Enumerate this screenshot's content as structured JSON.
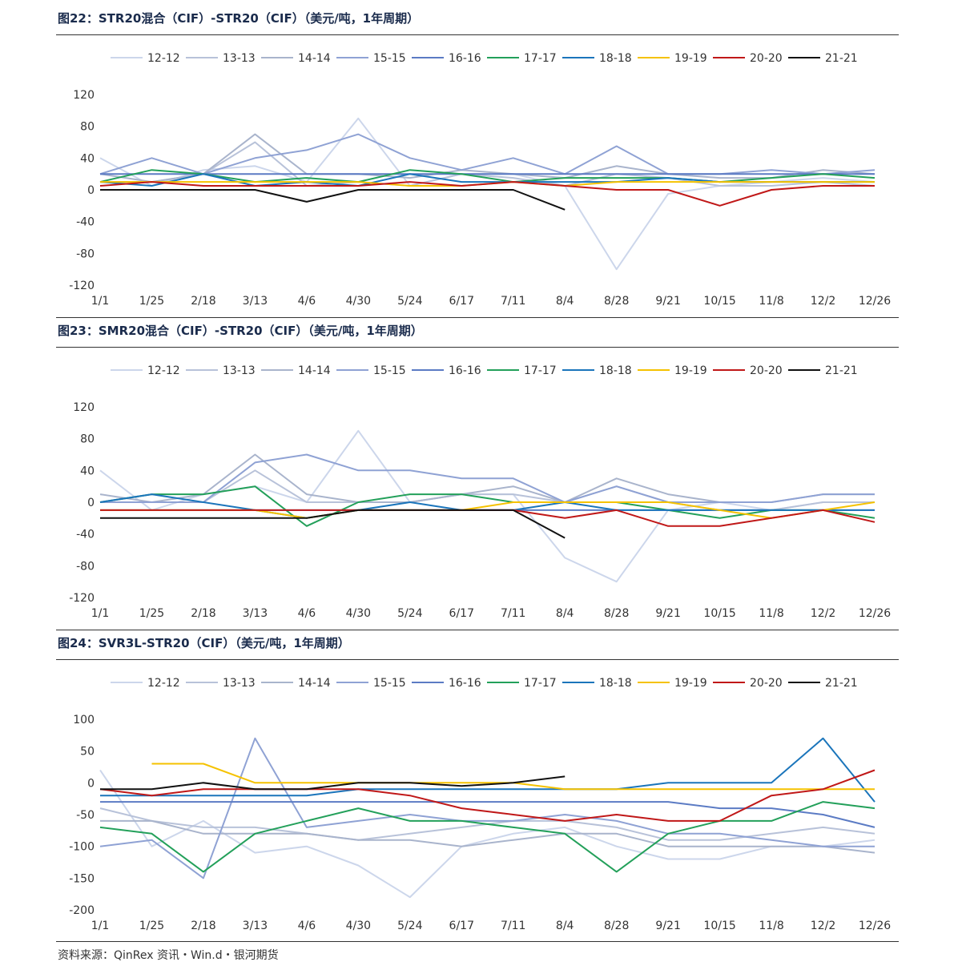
{
  "chart_data": [
    {
      "type": "line",
      "title": "图22：STR20混合（CIF）-STR20（CIF）（美元/吨，1年周期）",
      "categories": [
        "1/1",
        "1/25",
        "2/18",
        "3/13",
        "4/6",
        "4/30",
        "5/24",
        "6/17",
        "7/11",
        "8/4",
        "8/28",
        "9/21",
        "10/15",
        "11/8",
        "12/2",
        "12/26"
      ],
      "ylim": [
        -120,
        120
      ],
      "yticks": [
        120,
        80,
        40,
        0,
        -40,
        -80,
        -120
      ],
      "legend_position": "top",
      "series": [
        {
          "name": "12-12",
          "color": "#ccd6eb",
          "values": [
            40,
            5,
            25,
            30,
            10,
            90,
            5,
            20,
            20,
            5,
            -100,
            -5,
            5,
            10,
            15,
            10
          ]
        },
        {
          "name": "13-13",
          "color": "#b8c2d9",
          "values": [
            10,
            10,
            20,
            60,
            5,
            10,
            5,
            20,
            15,
            5,
            20,
            15,
            5,
            5,
            10,
            5
          ]
        },
        {
          "name": "14-14",
          "color": "#a9b4cc",
          "values": [
            20,
            10,
            20,
            70,
            20,
            20,
            15,
            25,
            20,
            15,
            30,
            20,
            15,
            15,
            25,
            20
          ]
        },
        {
          "name": "15-15",
          "color": "#8fa2d4",
          "values": [
            20,
            40,
            20,
            40,
            50,
            70,
            40,
            25,
            40,
            20,
            55,
            20,
            20,
            25,
            20,
            25
          ]
        },
        {
          "name": "16-16",
          "color": "#5b7bc4",
          "values": [
            20,
            20,
            20,
            20,
            20,
            20,
            20,
            20,
            20,
            20,
            20,
            20,
            20,
            20,
            20,
            20
          ]
        },
        {
          "name": "17-17",
          "color": "#23a05a",
          "values": [
            10,
            25,
            20,
            10,
            15,
            10,
            25,
            20,
            10,
            15,
            15,
            15,
            10,
            15,
            20,
            15
          ]
        },
        {
          "name": "18-18",
          "color": "#1b75bb",
          "values": [
            10,
            5,
            20,
            5,
            10,
            5,
            20,
            10,
            10,
            10,
            10,
            15,
            10,
            10,
            10,
            10
          ]
        },
        {
          "name": "19-19",
          "color": "#f5c200",
          "values": [
            10,
            10,
            10,
            10,
            10,
            10,
            5,
            5,
            10,
            5,
            10,
            10,
            10,
            10,
            10,
            10
          ]
        },
        {
          "name": "20-20",
          "color": "#c01818",
          "values": [
            5,
            10,
            5,
            5,
            5,
            5,
            10,
            5,
            10,
            5,
            0,
            0,
            -20,
            0,
            5,
            5
          ]
        },
        {
          "name": "21-21",
          "color": "#111111",
          "values": [
            0,
            0,
            0,
            0,
            -15,
            0,
            0,
            0,
            0,
            -25,
            null,
            null,
            null,
            null,
            null,
            null
          ]
        }
      ]
    },
    {
      "type": "line",
      "title": "图23：SMR20混合（CIF）-STR20（CIF）（美元/吨，1年周期）",
      "categories": [
        "1/1",
        "1/25",
        "2/18",
        "3/13",
        "4/6",
        "4/30",
        "5/24",
        "6/17",
        "7/11",
        "8/4",
        "8/28",
        "9/21",
        "10/15",
        "11/8",
        "12/2",
        "12/26"
      ],
      "ylim": [
        -120,
        120
      ],
      "yticks": [
        120,
        80,
        40,
        0,
        -40,
        -80,
        -120
      ],
      "legend_position": "top",
      "series": [
        {
          "name": "12-12",
          "color": "#ccd6eb",
          "values": [
            40,
            -10,
            10,
            20,
            0,
            90,
            0,
            10,
            10,
            -70,
            -100,
            -10,
            0,
            -10,
            0,
            0
          ]
        },
        {
          "name": "13-13",
          "color": "#b8c2d9",
          "values": [
            0,
            0,
            0,
            40,
            0,
            0,
            0,
            10,
            10,
            0,
            20,
            0,
            -10,
            -10,
            0,
            0
          ]
        },
        {
          "name": "14-14",
          "color": "#a9b4cc",
          "values": [
            10,
            0,
            10,
            60,
            10,
            0,
            0,
            10,
            20,
            0,
            30,
            10,
            0,
            0,
            10,
            10
          ]
        },
        {
          "name": "15-15",
          "color": "#8fa2d4",
          "values": [
            0,
            0,
            0,
            50,
            60,
            40,
            40,
            30,
            30,
            0,
            20,
            0,
            0,
            0,
            10,
            10
          ]
        },
        {
          "name": "16-16",
          "color": "#5b7bc4",
          "values": [
            -10,
            -10,
            -10,
            -10,
            -10,
            -10,
            -10,
            -10,
            -10,
            -10,
            -10,
            -10,
            -10,
            -10,
            -10,
            -10
          ]
        },
        {
          "name": "17-17",
          "color": "#23a05a",
          "values": [
            0,
            10,
            10,
            20,
            -30,
            0,
            10,
            10,
            0,
            0,
            0,
            -10,
            -20,
            -10,
            -10,
            -20
          ]
        },
        {
          "name": "18-18",
          "color": "#1b75bb",
          "values": [
            0,
            10,
            0,
            -10,
            -20,
            -10,
            0,
            -10,
            -10,
            0,
            -10,
            -10,
            -10,
            -10,
            -10,
            -10
          ]
        },
        {
          "name": "19-19",
          "color": "#f5c200",
          "values": [
            -10,
            -10,
            -10,
            -10,
            -20,
            -10,
            -10,
            -10,
            0,
            0,
            0,
            0,
            -10,
            -20,
            -10,
            0
          ]
        },
        {
          "name": "20-20",
          "color": "#c01818",
          "values": [
            -10,
            -10,
            -10,
            -10,
            -10,
            -10,
            -10,
            -10,
            -10,
            -20,
            -10,
            -30,
            -30,
            -20,
            -10,
            -25
          ]
        },
        {
          "name": "21-21",
          "color": "#111111",
          "values": [
            -20,
            -20,
            -20,
            -20,
            -20,
            -10,
            -10,
            -10,
            -10,
            -45,
            null,
            null,
            null,
            null,
            null,
            null
          ]
        }
      ]
    },
    {
      "type": "line",
      "title": "图24：SVR3L-STR20（CIF）（美元/吨，1年周期）",
      "categories": [
        "1/1",
        "1/25",
        "2/18",
        "3/13",
        "4/6",
        "4/30",
        "5/24",
        "6/17",
        "7/11",
        "8/4",
        "8/28",
        "9/21",
        "10/15",
        "11/8",
        "12/2",
        "12/26"
      ],
      "ylim": [
        -200,
        100
      ],
      "yticks": [
        100,
        50,
        0,
        -50,
        -100,
        -150,
        -200
      ],
      "legend_position": "top",
      "series": [
        {
          "name": "12-12",
          "color": "#ccd6eb",
          "values": [
            20,
            -100,
            -60,
            -110,
            -100,
            -130,
            -180,
            -100,
            -80,
            -70,
            -100,
            -120,
            -120,
            -100,
            -100,
            -90
          ]
        },
        {
          "name": "13-13",
          "color": "#b8c2d9",
          "values": [
            -40,
            -60,
            -70,
            -70,
            -80,
            -90,
            -80,
            -70,
            -60,
            -60,
            -70,
            -90,
            -90,
            -80,
            -70,
            -80
          ]
        },
        {
          "name": "14-14",
          "color": "#a9b4cc",
          "values": [
            -60,
            -60,
            -80,
            -80,
            -80,
            -90,
            -90,
            -100,
            -90,
            -80,
            -80,
            -100,
            -100,
            -100,
            -100,
            -110
          ]
        },
        {
          "name": "15-15",
          "color": "#8fa2d4",
          "values": [
            -100,
            -90,
            -150,
            70,
            -70,
            -60,
            -50,
            -60,
            -60,
            -50,
            -60,
            -80,
            -80,
            -90,
            -100,
            -100
          ]
        },
        {
          "name": "16-16",
          "color": "#5b7bc4",
          "values": [
            -30,
            -30,
            -30,
            -30,
            -30,
            -30,
            -30,
            -30,
            -30,
            -30,
            -30,
            -30,
            -40,
            -40,
            -50,
            -70
          ]
        },
        {
          "name": "17-17",
          "color": "#23a05a",
          "values": [
            -70,
            -80,
            -140,
            -80,
            -60,
            -40,
            -60,
            -60,
            -70,
            -80,
            -140,
            -80,
            -60,
            -60,
            -30,
            -40
          ]
        },
        {
          "name": "18-18",
          "color": "#1b75bb",
          "values": [
            -20,
            -20,
            -20,
            -20,
            -20,
            -10,
            -10,
            -10,
            -10,
            -10,
            -10,
            0,
            0,
            0,
            70,
            -30
          ]
        },
        {
          "name": "19-19",
          "color": "#f5c200",
          "values": [
            null,
            30,
            30,
            0,
            0,
            0,
            0,
            0,
            0,
            -10,
            -10,
            -10,
            -10,
            -10,
            -10,
            -10
          ]
        },
        {
          "name": "20-20",
          "color": "#c01818",
          "values": [
            -10,
            -20,
            -10,
            -10,
            -10,
            -10,
            -20,
            -40,
            -50,
            -60,
            -50,
            -60,
            -60,
            -20,
            -10,
            20
          ]
        },
        {
          "name": "21-21",
          "color": "#111111",
          "values": [
            -10,
            -10,
            0,
            -10,
            -10,
            0,
            0,
            -5,
            0,
            10,
            null,
            null,
            null,
            null,
            null,
            null
          ]
        }
      ]
    }
  ],
  "footer": {
    "source": "资料来源：QinRex 资讯・Win.d・银河期货"
  }
}
